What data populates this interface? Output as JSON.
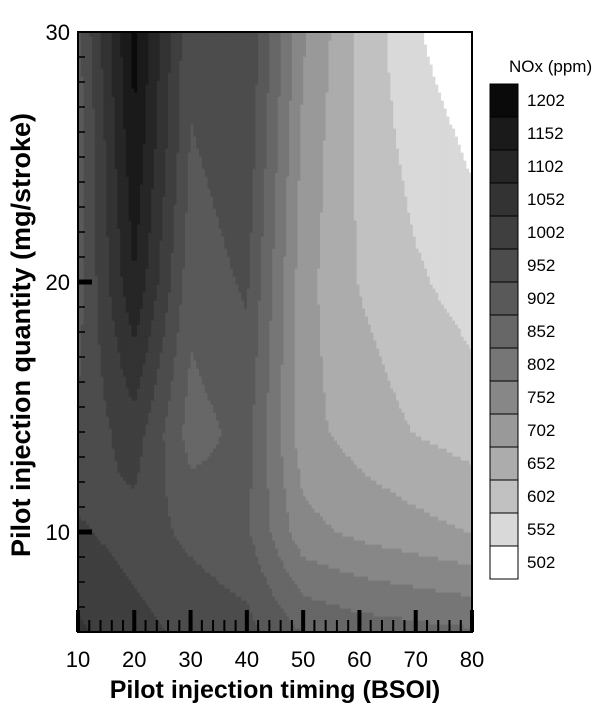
{
  "chart_data": {
    "type": "heatmap",
    "title": "",
    "xlabel": "Pilot injection timing (BSOI)",
    "ylabel": "Pilot injection quantity (mg/stroke)",
    "xlim": [
      10,
      80
    ],
    "ylim": [
      6,
      30
    ],
    "x_ticks": [
      10,
      20,
      30,
      40,
      50,
      60,
      70,
      80
    ],
    "y_ticks": [
      10,
      20,
      30
    ],
    "grid": false,
    "legend_placement": "right",
    "legend_title": "NOx (ppm)",
    "levels": [
      1202,
      1152,
      1102,
      1052,
      1002,
      952,
      902,
      852,
      802,
      752,
      702,
      652,
      602,
      552,
      502
    ],
    "level_colors": [
      "#0a0a0a",
      "#1a1a1a",
      "#262626",
      "#333333",
      "#3f3f3f",
      "#4c4c4c",
      "#595959",
      "#676767",
      "#767676",
      "#878787",
      "#999999",
      "#acacac",
      "#c1c1c1",
      "#d9d9d9",
      "#ffffff"
    ],
    "x": [
      10,
      20,
      30,
      40,
      50,
      60,
      70,
      80
    ],
    "y": [
      6,
      10,
      14,
      20,
      26,
      30
    ],
    "z": [
      [
        1060,
        1020,
        990,
        970,
        900,
        880,
        870,
        860
      ],
      [
        1010,
        980,
        940,
        910,
        770,
        740,
        720,
        700
      ],
      [
        960,
        1030,
        880,
        920,
        720,
        680,
        650,
        630
      ],
      [
        930,
        1150,
        920,
        960,
        720,
        650,
        610,
        580
      ],
      [
        920,
        1200,
        950,
        990,
        740,
        640,
        580,
        540
      ],
      [
        940,
        1220,
        960,
        1000,
        760,
        640,
        560,
        500
      ]
    ]
  }
}
